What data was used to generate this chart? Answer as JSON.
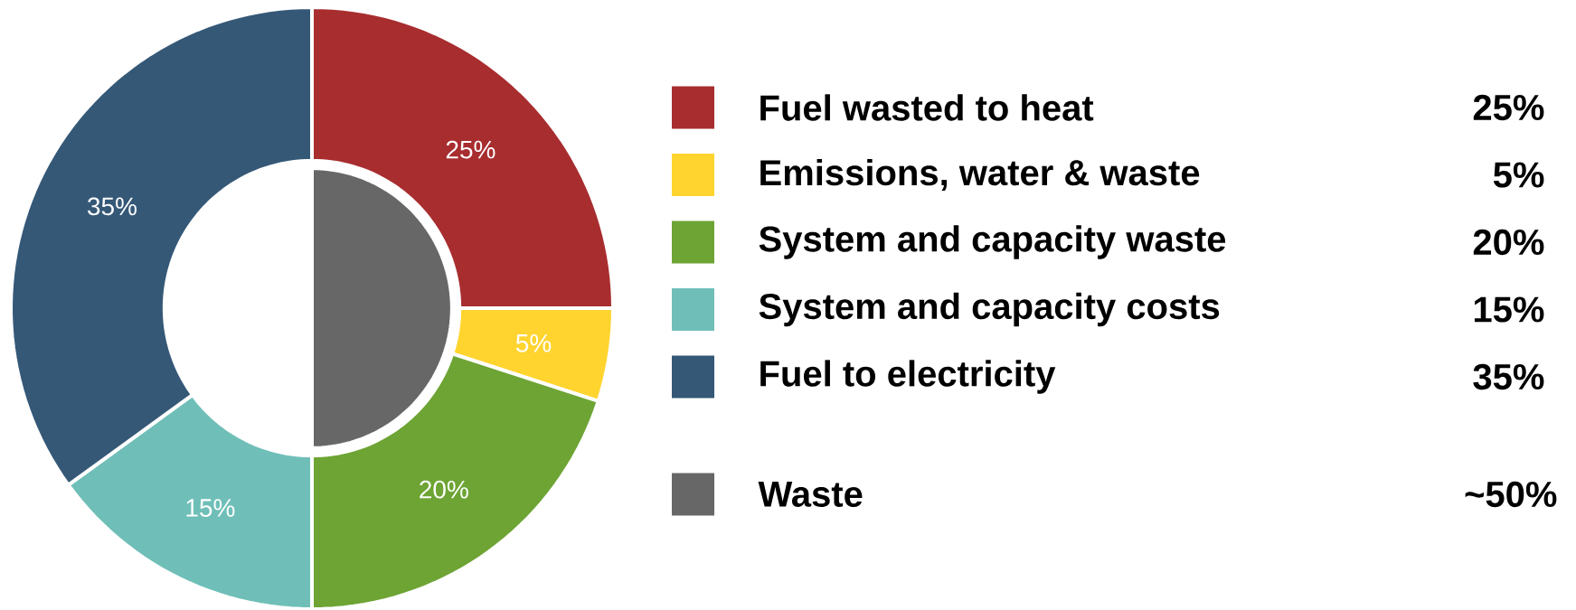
{
  "chart_data": [
    {
      "type": "donut",
      "categories": [
        "Fuel wasted to heat",
        "Emissions, water & waste",
        "System and capacity waste",
        "System and capacity costs",
        "Fuel to electricity"
      ],
      "values": [
        25,
        5,
        20,
        15,
        35
      ],
      "value_labels": [
        "25%",
        "5%",
        "20%",
        "15%",
        "35%"
      ],
      "colors": [
        "#a82d2f",
        "#ffd42f",
        "#6da434",
        "#6fbfb8",
        "#355877"
      ],
      "legend": "right"
    },
    {
      "type": "pie",
      "categories": [
        "Waste"
      ],
      "values": [
        50
      ],
      "value_labels": [
        "~50%"
      ],
      "colors": [
        "#676767"
      ],
      "legend": "right"
    }
  ]
}
